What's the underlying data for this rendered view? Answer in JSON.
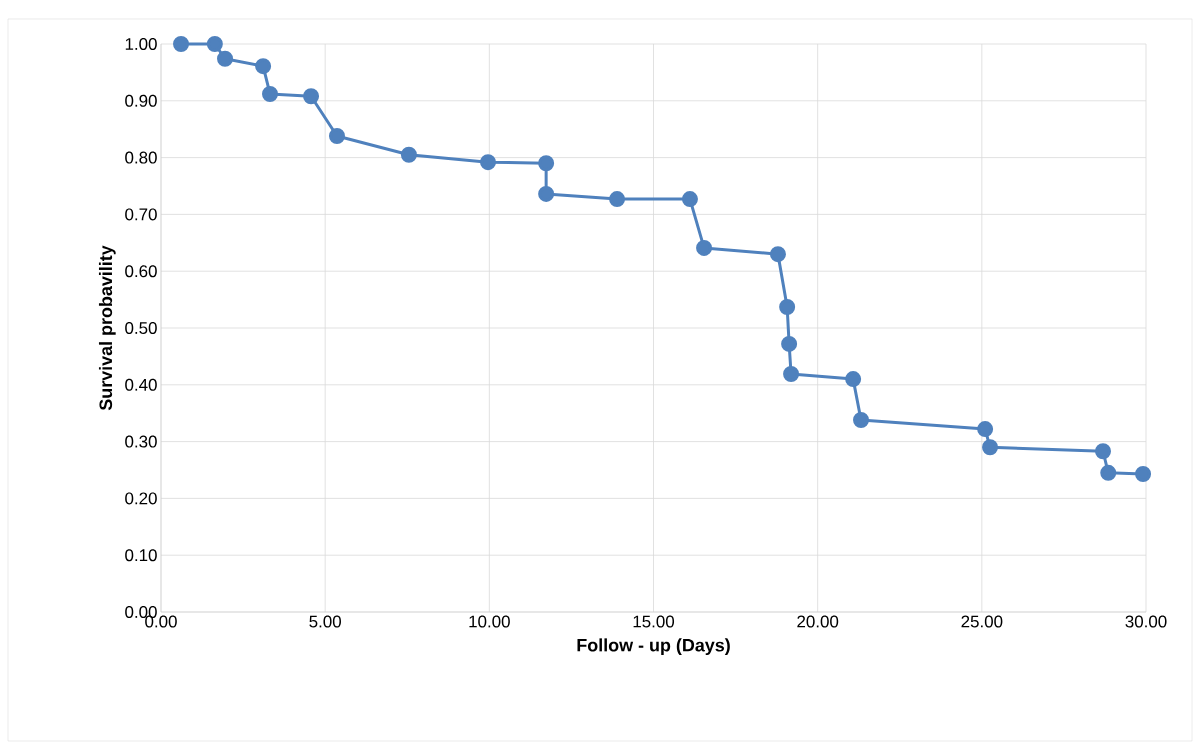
{
  "chart_data": {
    "type": "line",
    "xlabel": "Follow - up (Days)",
    "ylabel": "Survival probavility",
    "x": [
      0.61,
      1.64,
      1.95,
      3.11,
      3.32,
      4.57,
      5.36,
      7.55,
      9.96,
      11.73,
      11.73,
      13.89,
      16.11,
      16.54,
      18.79,
      19.07,
      19.13,
      19.19,
      21.08,
      21.32,
      25.1,
      25.25,
      28.69,
      28.85,
      29.91
    ],
    "values": [
      1.0,
      1.0,
      0.974,
      0.961,
      0.912,
      0.908,
      0.838,
      0.805,
      0.792,
      0.79,
      0.736,
      0.727,
      0.727,
      0.641,
      0.63,
      0.537,
      0.472,
      0.419,
      0.41,
      0.338,
      0.322,
      0.29,
      0.283,
      0.245,
      0.243
    ],
    "color": "#4f81bd",
    "marker": "circle",
    "line_style": "solid",
    "grid": true,
    "xlim": [
      0,
      30
    ],
    "ylim": [
      0,
      1
    ],
    "xticks": [
      {
        "value": 0,
        "label": "0.00"
      },
      {
        "value": 5,
        "label": "5.00"
      },
      {
        "value": 10,
        "label": "10.00"
      },
      {
        "value": 15,
        "label": "15.00"
      },
      {
        "value": 20,
        "label": "20.00"
      },
      {
        "value": 25,
        "label": "25.00"
      },
      {
        "value": 30,
        "label": "30.00"
      }
    ],
    "yticks": [
      {
        "value": 0,
        "label": "0.00"
      },
      {
        "value": 0.1,
        "label": "0.10"
      },
      {
        "value": 0.2,
        "label": "0.20"
      },
      {
        "value": 0.3,
        "label": "0.30"
      },
      {
        "value": 0.4,
        "label": "0.40"
      },
      {
        "value": 0.5,
        "label": "0.50"
      },
      {
        "value": 0.6,
        "label": "0.60"
      },
      {
        "value": 0.7,
        "label": "0.70"
      },
      {
        "value": 0.8,
        "label": "0.80"
      },
      {
        "value": 0.9,
        "label": "0.90"
      },
      {
        "value": 1,
        "label": "1.00"
      }
    ]
  }
}
